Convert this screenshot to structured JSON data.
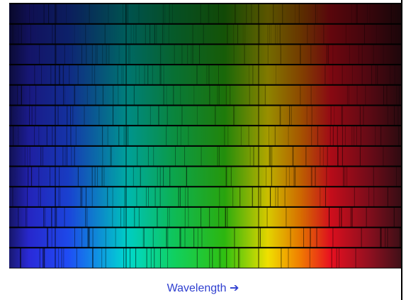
{
  "caption": "Wavelength ➔"
}
